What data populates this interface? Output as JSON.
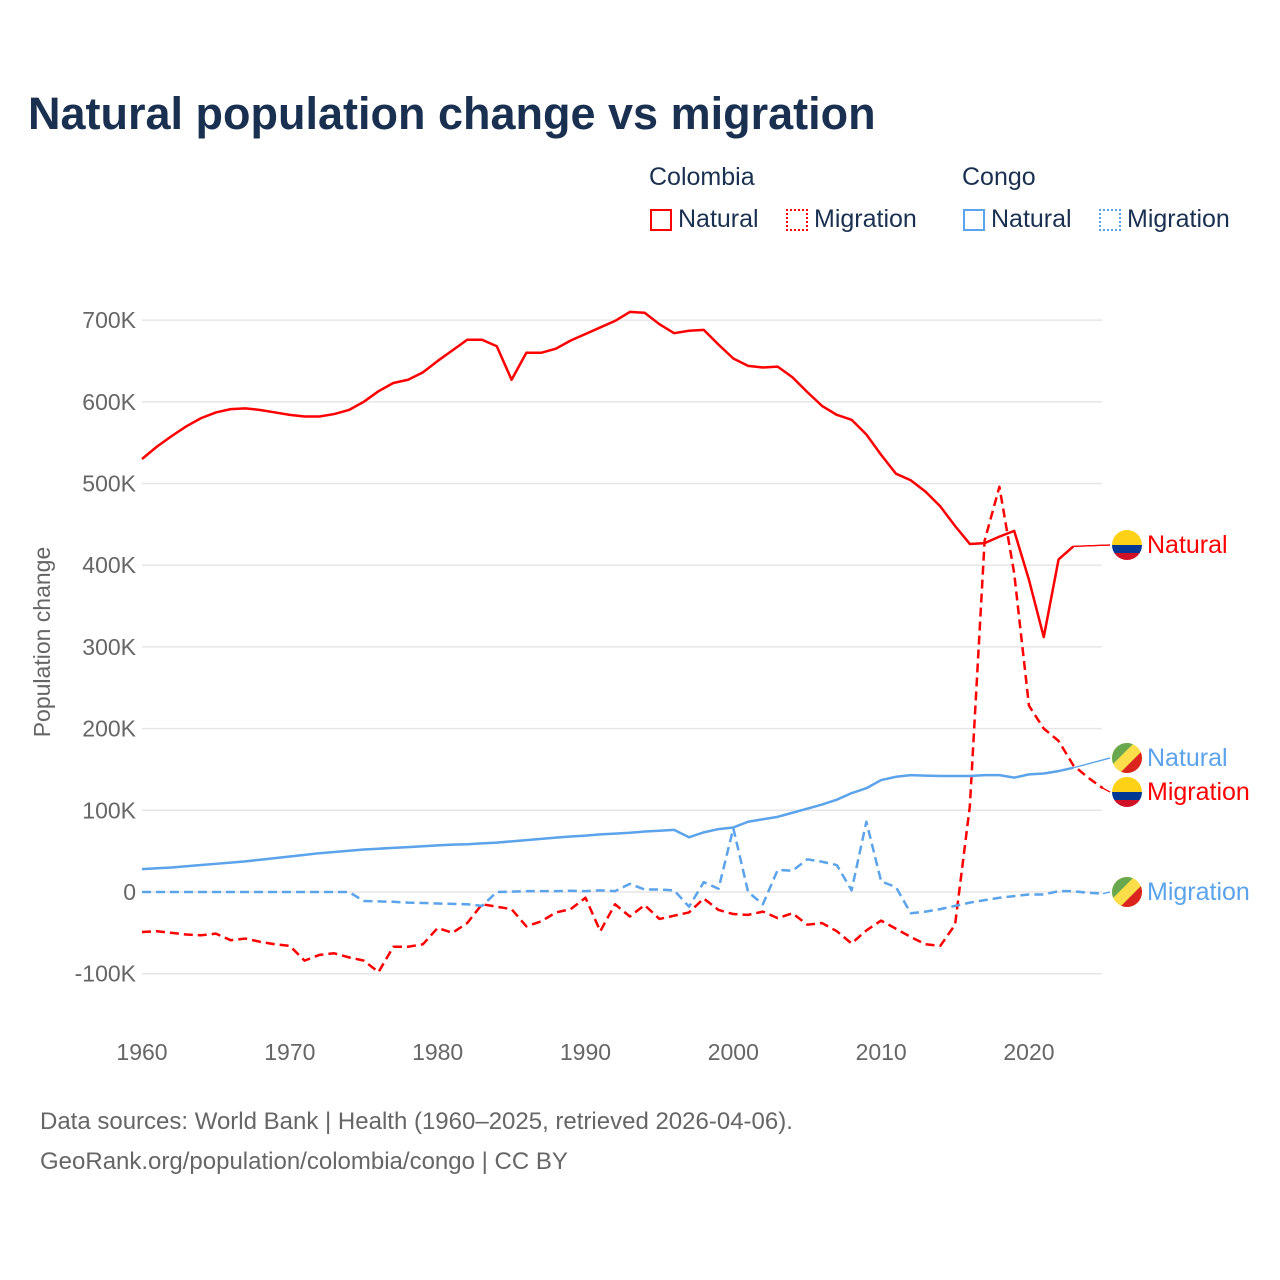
{
  "chart_data": {
    "type": "line",
    "title": "Natural population change vs migration",
    "ylabel": "Population change",
    "xlabel": "",
    "xlim": [
      1960,
      2025
    ],
    "ylim": [
      -150000,
      750000
    ],
    "x_ticks": [
      "1960",
      "1970",
      "1980",
      "1990",
      "2000",
      "2010",
      "2020"
    ],
    "y_ticks": [
      {
        "v": -100000,
        "label": "-100K"
      },
      {
        "v": 0,
        "label": "0"
      },
      {
        "v": 100000,
        "label": "100K"
      },
      {
        "v": 200000,
        "label": "200K"
      },
      {
        "v": 300000,
        "label": "300K"
      },
      {
        "v": 400000,
        "label": "400K"
      },
      {
        "v": 500000,
        "label": "500K"
      },
      {
        "v": 600000,
        "label": "600K"
      },
      {
        "v": 700000,
        "label": "700K"
      }
    ],
    "grid": true,
    "legend": {
      "position": "top-right",
      "groups": [
        {
          "country": "Colombia",
          "items": [
            "Natural",
            "Migration"
          ]
        },
        {
          "country": "Congo",
          "items": [
            "Natural",
            "Migration"
          ]
        }
      ]
    },
    "series": [
      {
        "name": "Natural",
        "country": "Colombia",
        "color": "#ff0000",
        "dash": false,
        "start": 1960,
        "label": "Natural",
        "values_k": [
          530,
          545,
          558,
          570,
          580,
          587,
          591,
          592,
          590,
          587,
          584,
          582,
          582,
          585,
          590,
          600,
          613,
          623,
          627,
          636,
          650,
          663,
          676,
          676,
          668,
          627,
          660,
          660,
          665,
          675,
          683,
          691,
          699,
          710,
          709,
          695,
          684,
          687,
          688,
          670,
          653,
          644,
          642,
          643,
          630,
          612,
          595,
          584,
          578,
          560,
          535,
          512,
          504,
          490,
          472,
          448,
          426,
          427,
          435,
          442,
          382,
          312,
          407,
          423
        ]
      },
      {
        "name": "Migration",
        "country": "Colombia",
        "color": "#ff0000",
        "dash": true,
        "start": 1960,
        "label": "Migration",
        "values_k": [
          -49,
          -48,
          -50,
          -52,
          -53,
          -51,
          -59,
          -57,
          -61,
          -64,
          -66,
          -84,
          -77,
          -75,
          -80,
          -84,
          -98,
          -67,
          -67,
          -64,
          -44,
          -50,
          -38,
          -15,
          -18,
          -21,
          -42,
          -36,
          -25,
          -21,
          -7,
          -48,
          -15,
          -30,
          -16,
          -33,
          -29,
          -25,
          -8,
          -22,
          -27,
          -28,
          -24,
          -32,
          -26,
          -40,
          -38,
          -48,
          -63,
          -47,
          -35,
          -45,
          -55,
          -64,
          -66,
          -40,
          105,
          430,
          496,
          390,
          228,
          200,
          185,
          155,
          140,
          127
        ]
      },
      {
        "name": "Natural",
        "country": "Congo",
        "color": "#5ba3ea",
        "dash": false,
        "start": 1960,
        "label": "Natural",
        "values_k": [
          28,
          29,
          30,
          31.5,
          33,
          34.5,
          36,
          37.5,
          39.5,
          41.5,
          43.5,
          45.5,
          47.5,
          49,
          50.5,
          52,
          53,
          54,
          55,
          56,
          57,
          58,
          58.5,
          59.5,
          60.5,
          62,
          63.5,
          65,
          66.5,
          68,
          69,
          70.5,
          71.5,
          72.5,
          74,
          75,
          76,
          67,
          73,
          77,
          79,
          86,
          89,
          92,
          97,
          102,
          107,
          113,
          121,
          127,
          137,
          141,
          143,
          142.5,
          142,
          142,
          142,
          143,
          143,
          140,
          144,
          145,
          148,
          152
        ]
      },
      {
        "name": "Migration",
        "country": "Congo",
        "color": "#5ba3ea",
        "dash": true,
        "start": 1960,
        "label": "Migration",
        "values_k": [
          0,
          0,
          0,
          0,
          0,
          0,
          0,
          0,
          0,
          0,
          0,
          0,
          0,
          0,
          0,
          -11,
          -11.5,
          -12,
          -13,
          -13.5,
          -14,
          -14.5,
          -15,
          -17,
          0,
          0.5,
          1,
          1,
          1,
          1.5,
          1,
          2,
          1,
          10,
          3,
          3,
          2,
          -18,
          12,
          4,
          78,
          0,
          -15,
          27,
          26,
          40,
          37,
          33,
          2,
          86,
          13,
          6,
          -26,
          -24,
          -21,
          -17,
          -13,
          -10,
          -7,
          -5,
          -3,
          -3,
          1,
          1,
          -1,
          -2
        ]
      }
    ]
  },
  "sources": {
    "line1": "Data sources: World Bank | Health (1960–2025, retrieved 2026-04-06).",
    "line2": "GeoRank.org/population/colombia/congo | CC BY"
  }
}
